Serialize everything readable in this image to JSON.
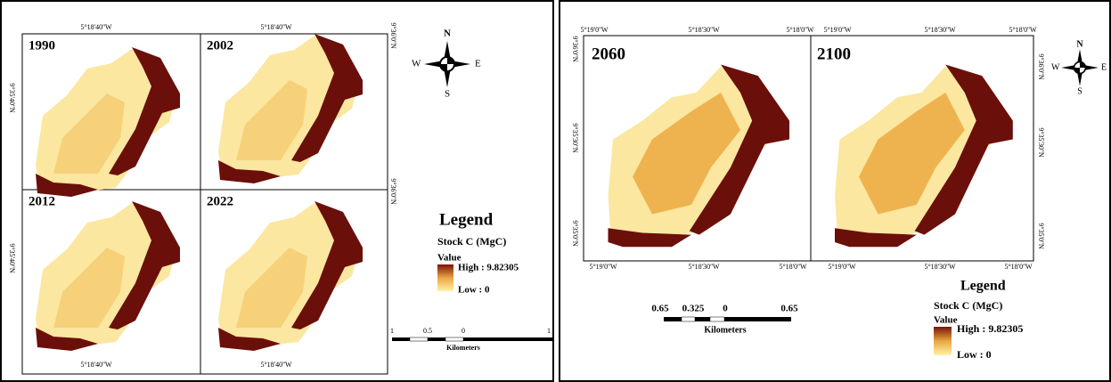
{
  "left_panel": {
    "maps": [
      {
        "year": "1990"
      },
      {
        "year": "2002"
      },
      {
        "year": "2012"
      },
      {
        "year": "2022"
      }
    ],
    "top_labels": [
      "5°18'40''W",
      "5°18'40''W"
    ],
    "bottom_labels": [
      "5°18'40''W",
      "5°18'40''W"
    ],
    "left_labels": [
      "9°35'40''N",
      "9°35'40''N"
    ],
    "right_labels": [
      "9°36'0''N",
      "9°36'0''N"
    ],
    "compass": {
      "n": "N",
      "s": "S",
      "e": "E",
      "w": "W"
    },
    "legend": {
      "title": "Legend",
      "subtitle": "Stock C (MgC)",
      "value": "Value",
      "high": "High : 9.82305",
      "low": "Low : 0"
    },
    "scale": {
      "labels": [
        "1",
        "0.5",
        "0",
        "1"
      ],
      "unit": "Kilometers"
    }
  },
  "right_panel": {
    "maps": [
      {
        "year": "2060"
      },
      {
        "year": "2100"
      }
    ],
    "top_labels": [
      "5°19'0''W",
      "5°18'30''W",
      "5°18'0''W",
      "5°19'0''W",
      "5°18'30''W",
      "5°18'0''W"
    ],
    "bottom_labels": [
      "5°19'0''W",
      "5°18'30''W",
      "5°18'0''W",
      "5°19'0''W",
      "5°18'30''W",
      "5°18'0''W"
    ],
    "left_labels": [
      "9°36'0''N",
      "9°35'30''N",
      "9°35'0''N"
    ],
    "right_labels": [
      "9°36'0''N",
      "9°35'30''N",
      "9°35'0''N"
    ],
    "compass": {
      "n": "N",
      "s": "S",
      "e": "E",
      "w": "W"
    },
    "legend": {
      "title": "Legend",
      "subtitle": "Stock C (MgC)",
      "value": "Value",
      "high": "High : 9.82305",
      "low": "Low : 0"
    },
    "scale": {
      "labels": [
        "0.65",
        "0.325",
        "0",
        "0.65"
      ],
      "unit": "Kilometers"
    }
  }
}
